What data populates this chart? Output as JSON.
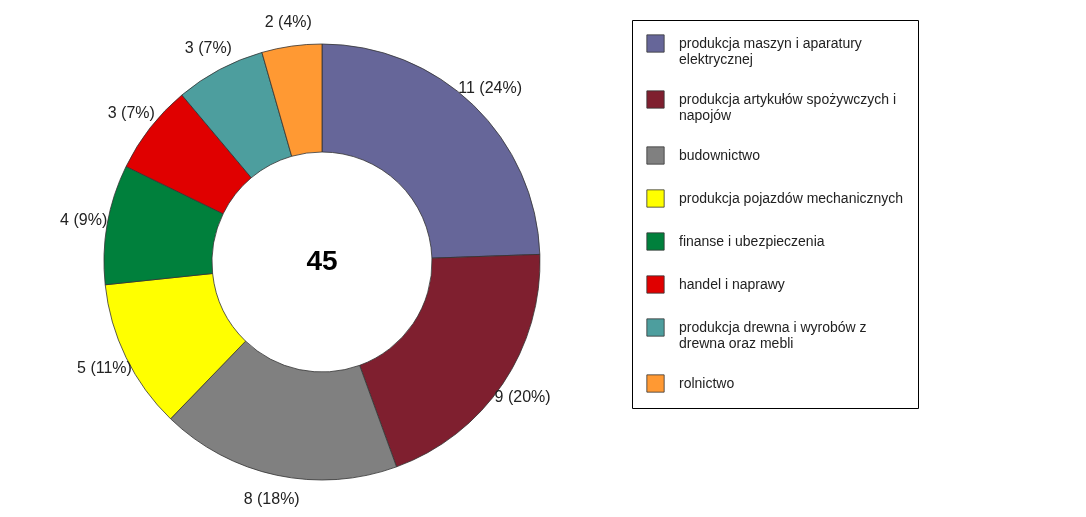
{
  "chart_data": {
    "type": "donut",
    "categories": [
      "produkcja maszyn i aparatury elektrycznej",
      "produkcja artykułów spożywczych i napojów",
      "budownictwo",
      "produkcja pojazdów mechanicznych",
      "finanse i ubezpieczenia",
      "handel i naprawy",
      "produkcja drewna i wyrobów z drewna oraz mebli",
      "rolnictwo"
    ],
    "values": [
      11,
      9,
      8,
      5,
      4,
      3,
      3,
      2
    ],
    "value_labels": [
      "11 (24%)",
      "9 (20%)",
      "8 (18%)",
      "5 (11%)",
      "4 (9%)",
      "3 (7%)",
      "3 (7%)",
      "2 (4%)"
    ],
    "colors": [
      "#666699",
      "#7f1f2f",
      "#808080",
      "#ffff00",
      "#00803c",
      "#e00000",
      "#4d9e9e",
      "#ff9933"
    ],
    "annotations": [
      "45"
    ],
    "legend": "right"
  }
}
